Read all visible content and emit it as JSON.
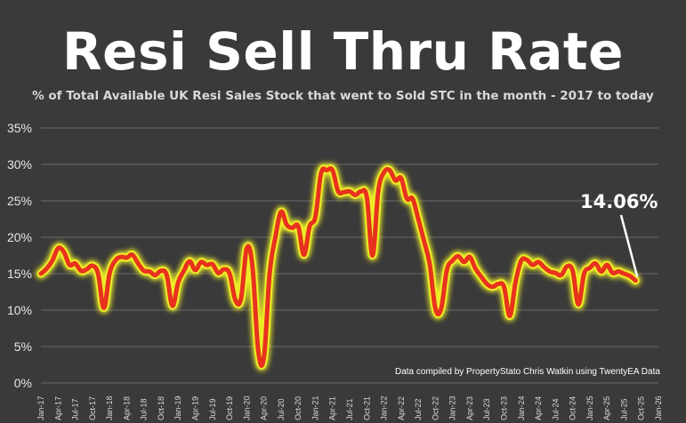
{
  "title": "Resi Sell Thru Rate",
  "subtitle": "% of Total Available UK Resi Sales Stock that went to Sold STC in the month - 2017 to today",
  "credit": "Data compiled by PropertyStato Chris Watkin using TwentyEA Data",
  "colors": {
    "line": "#e8321e",
    "glow": "#ecec28",
    "background": "#3a3a3a",
    "grid": "#6a6a6a"
  },
  "chart_data": {
    "type": "line",
    "title": "Resi Sell Thru Rate",
    "subtitle": "% of Total Available UK Resi Sales Stock that went to Sold STC in the month - 2017 to today",
    "ylim": [
      0,
      35
    ],
    "y_ticks": [
      "0%",
      "5%",
      "10%",
      "15%",
      "20%",
      "25%",
      "30%",
      "35%"
    ],
    "y_tick_values": [
      0,
      5,
      10,
      15,
      20,
      25,
      30,
      35
    ],
    "x_tick_labels": [
      "Jan-17",
      "Apr-17",
      "Jul-17",
      "Oct-17",
      "Jan-18",
      "Apr-18",
      "Jul-18",
      "Oct-18",
      "Jan-19",
      "Apr-19",
      "Jul-19",
      "Oct-19",
      "Jan-20",
      "Apr-20",
      "Jul-20",
      "Oct-20",
      "Jan-21",
      "Apr-21",
      "Jul-21",
      "Oct-21",
      "Jan-22",
      "Apr-22",
      "Jul-22",
      "Oct-22",
      "Jan-23",
      "Apr-23",
      "Jul-23",
      "Oct-23",
      "Jan-24",
      "Apr-24",
      "Jul-24",
      "Oct-24",
      "Jan-25",
      "Apr-25",
      "Jul-25",
      "Oct-25",
      "Jan-26"
    ],
    "grid": true,
    "legend": "none",
    "annotation": {
      "label": "14.06%",
      "x": "Sep-25",
      "y": 14.06
    },
    "x": [
      "Jan-17",
      "Feb-17",
      "Mar-17",
      "Apr-17",
      "May-17",
      "Jun-17",
      "Jul-17",
      "Aug-17",
      "Sep-17",
      "Oct-17",
      "Nov-17",
      "Dec-17",
      "Jan-18",
      "Feb-18",
      "Mar-18",
      "Apr-18",
      "May-18",
      "Jun-18",
      "Jul-18",
      "Aug-18",
      "Sep-18",
      "Oct-18",
      "Nov-18",
      "Dec-18",
      "Jan-19",
      "Feb-19",
      "Mar-19",
      "Apr-19",
      "May-19",
      "Jun-19",
      "Jul-19",
      "Aug-19",
      "Sep-19",
      "Oct-19",
      "Nov-19",
      "Dec-19",
      "Jan-20",
      "Feb-20",
      "Mar-20",
      "Apr-20",
      "May-20",
      "Jun-20",
      "Jul-20",
      "Aug-20",
      "Sep-20",
      "Oct-20",
      "Nov-20",
      "Dec-20",
      "Jan-21",
      "Feb-21",
      "Mar-21",
      "Apr-21",
      "May-21",
      "Jun-21",
      "Jul-21",
      "Aug-21",
      "Sep-21",
      "Oct-21",
      "Nov-21",
      "Dec-21",
      "Jan-22",
      "Feb-22",
      "Mar-22",
      "Apr-22",
      "May-22",
      "Jun-22",
      "Jul-22",
      "Aug-22",
      "Sep-22",
      "Oct-22",
      "Nov-22",
      "Dec-22",
      "Jan-23",
      "Feb-23",
      "Mar-23",
      "Apr-23",
      "May-23",
      "Jun-23",
      "Jul-23",
      "Aug-23",
      "Sep-23",
      "Oct-23",
      "Nov-23",
      "Dec-23",
      "Jan-24",
      "Feb-24",
      "Mar-24",
      "Apr-24",
      "May-24",
      "Jun-24",
      "Jul-24",
      "Aug-24",
      "Sep-24",
      "Oct-24",
      "Nov-24",
      "Dec-24",
      "Jan-25",
      "Feb-25",
      "Mar-25",
      "Apr-25",
      "May-25",
      "Jun-25",
      "Jul-25",
      "Aug-25",
      "Sep-25"
    ],
    "series": [
      {
        "values": [
          15.0,
          15.7,
          16.8,
          18.5,
          18.0,
          16.2,
          16.4,
          15.4,
          15.6,
          16.1,
          15.0,
          10.3,
          15.0,
          16.8,
          17.3,
          17.2,
          17.6,
          16.4,
          15.4,
          15.3,
          14.8,
          15.4,
          14.8,
          10.6,
          13.8,
          15.4,
          16.7,
          15.5,
          16.6,
          16.2,
          16.3,
          15.1,
          15.6,
          15.0,
          11.4,
          11.6,
          18.5,
          16.0,
          4.5,
          3.5,
          15.0,
          20.0,
          23.5,
          21.7,
          21.3,
          21.5,
          17.6,
          21.5,
          22.8,
          28.8,
          29.2,
          29.2,
          26.3,
          26.2,
          26.3,
          25.8,
          26.3,
          25.5,
          17.5,
          26.3,
          28.9,
          29.2,
          27.8,
          28.1,
          25.3,
          25.3,
          22.5,
          19.5,
          16.3,
          10.2,
          10.2,
          15.5,
          16.8,
          17.4,
          16.6,
          17.3,
          15.7,
          14.6,
          13.6,
          13.2,
          13.6,
          13.2,
          9.2,
          13.8,
          16.8,
          16.9,
          16.2,
          16.6,
          15.9,
          15.3,
          15.1,
          14.8,
          16.0,
          15.4,
          10.8,
          15.0,
          15.8,
          16.4,
          15.3,
          16.2,
          15.1,
          15.3,
          15.0,
          14.7,
          14.06
        ]
      }
    ]
  }
}
